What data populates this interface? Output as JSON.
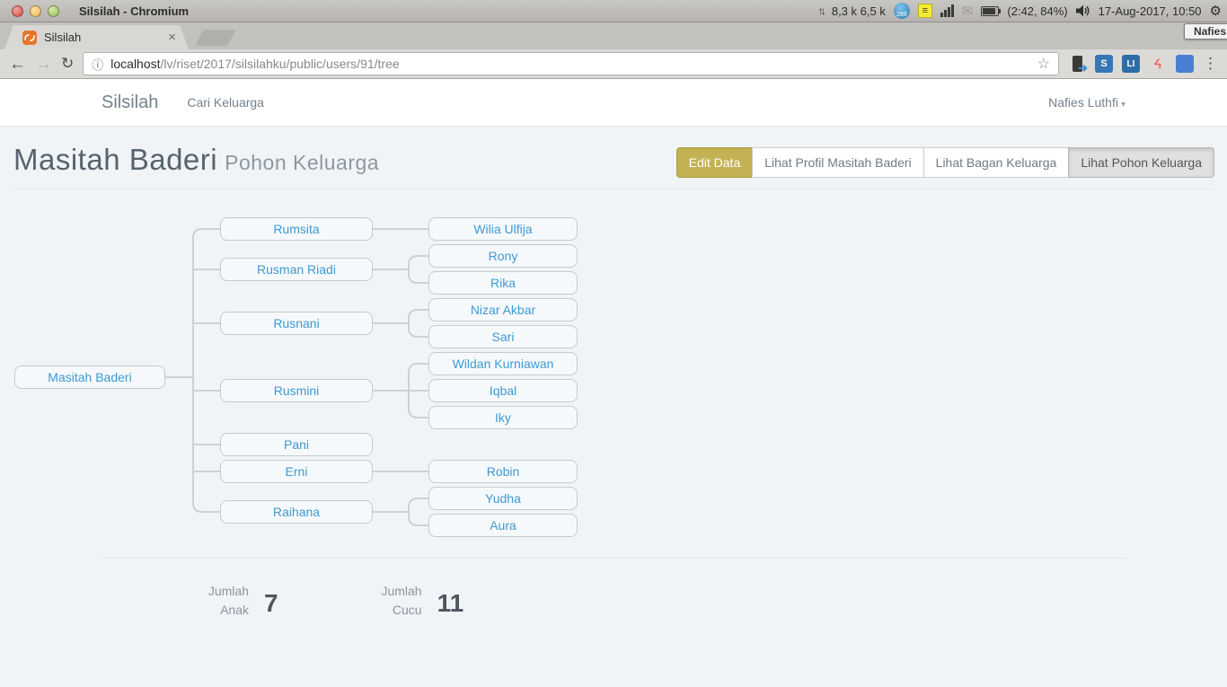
{
  "system_bar": {
    "window_title": "Silsilah - Chromium",
    "net_speed": "8,3 k 6,5 k",
    "badge_count": "289",
    "battery_status": "(2:42, 84%)",
    "clock": "17-Aug-2017, 10:50",
    "tooltip": "Nafies"
  },
  "browser": {
    "tab_title": "Silsilah",
    "url_host": "localhost",
    "url_path": "/lv/riset/2017/silsilahku/public/users/91/tree",
    "ext_s_label": "S",
    "ext_li_label": "LI"
  },
  "icons": {
    "close": "×",
    "back": "←",
    "forward": "→",
    "reload": "↻",
    "info": "ⓘ",
    "star": "☆",
    "menu": "⋮",
    "gear": "⚙",
    "caret": "▾",
    "net_arrows": "↑↓",
    "mail": "✉",
    "notes": "≡",
    "laravel": "ᔦ",
    "phone_arrow": "➜"
  },
  "navbar": {
    "brand": "Silsilah",
    "menu_item": "Cari Keluarga",
    "user": "Nafies Luthfi"
  },
  "header": {
    "title": "Masitah Baderi",
    "subtitle": "Pohon Keluarga",
    "buttons": [
      {
        "label": "Edit Data"
      },
      {
        "label": "Lihat Profil Masitah Baderi"
      },
      {
        "label": "Lihat Bagan Keluarga"
      },
      {
        "label": "Lihat Pohon Keluarga"
      }
    ]
  },
  "tree": {
    "root": "Masitah Baderi",
    "children": [
      {
        "name": "Rumsita",
        "children": [
          "Wilia Ulfija"
        ]
      },
      {
        "name": "Rusman Riadi",
        "children": [
          "Rony",
          "Rika"
        ]
      },
      {
        "name": "Rusnani",
        "children": [
          "Nizar Akbar",
          "Sari"
        ]
      },
      {
        "name": "Rusmini",
        "children": [
          "Wildan Kurniawan",
          "Iqbal",
          "Iky"
        ]
      },
      {
        "name": "Pani",
        "children": []
      },
      {
        "name": "Erni",
        "children": [
          "Robin"
        ]
      },
      {
        "name": "Raihana",
        "children": [
          "Yudha",
          "Aura"
        ]
      }
    ]
  },
  "stats": [
    {
      "label_line1": "Jumlah",
      "label_line2": "Anak",
      "value": "7"
    },
    {
      "label_line1": "Jumlah",
      "label_line2": "Cucu",
      "value": "11"
    }
  ],
  "colors": {
    "accent_olive": "#c2b253",
    "link_blue": "#3d9ad3",
    "page_bg": "#f1f4f7",
    "node_border": "#c5cacd",
    "connector": "#c9cdd1"
  }
}
